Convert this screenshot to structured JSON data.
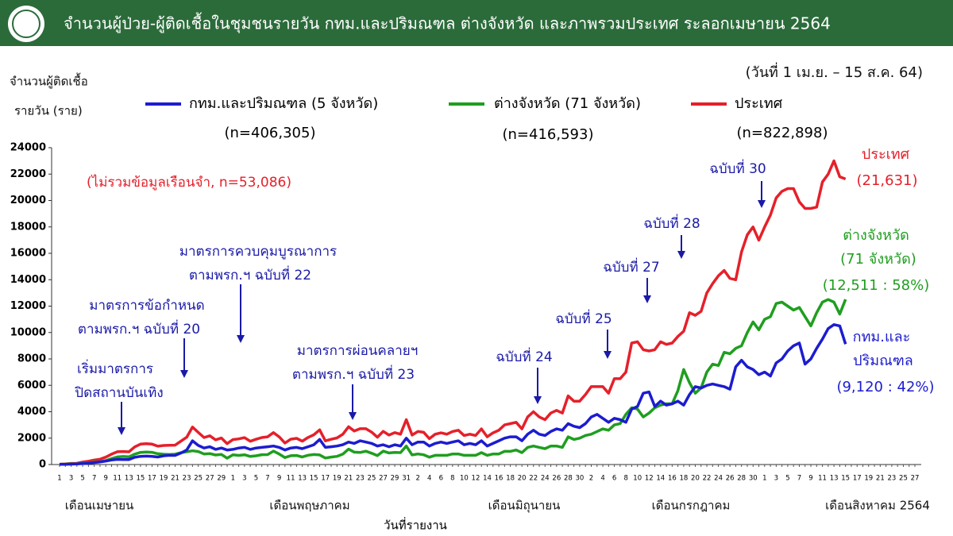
{
  "chart_data": {
    "type": "line",
    "title": "จำนวนผู้ป่วย-ผู้ติดเชื้อในชุมชนรายวัน กทม.และปริมณฑล ต่างจังหวัด และภาพรวมประเทศ ระลอกเมษายน 2564",
    "subtitle": "(วันที่ 1 เม.ย. – 15 ส.ค. 64)",
    "y_label": [
      "จำนวนผู้ติดเชื้อ",
      "รายวัน (ราย)"
    ],
    "x_label": "วันที่รายงาน",
    "months": [
      "เดือนเมษายน",
      "เดือนพฤษภาคม",
      "เดือนมิถุนายน",
      "เดือนกรกฎาคม",
      "เดือนสิงหาคม 2564"
    ],
    "note": "(ไม่รวมข้อมูลเรือนจำ, n=53,086)",
    "annotations": [
      [
        "เริ่มมาตรการ",
        "ปิดสถานบันเทิง"
      ],
      [
        "มาตรการข้อกำหนด",
        "ตามพรก.ฯ ฉบับที่ 20"
      ],
      [
        "มาตรการควบคุมบูรณาการ",
        "ตามพรก.ฯ ฉบับที่ 22"
      ],
      [
        "มาตรการผ่อนคลายฯ",
        "ตามพรก.ฯ ฉบับที่ 23"
      ],
      [
        "ฉบับที่ 24"
      ],
      [
        "ฉบับที่ 25"
      ],
      [
        "ฉบับที่ 27"
      ],
      [
        "ฉบับที่ 28"
      ],
      [
        "ฉบับที่ 30"
      ]
    ],
    "end_labels": [
      [
        "ประเทศ",
        "(21,631)"
      ],
      [
        "ต่างจังหวัด",
        "(71 จังหวัด)",
        "(12,511 : 58%)"
      ],
      [
        "กทม.และ",
        "ปริมณฑล",
        "(9,120 : 42%)"
      ]
    ],
    "ylim": [
      0,
      24000
    ],
    "yticks": [
      0,
      2000,
      4000,
      6000,
      8000,
      10000,
      12000,
      14000,
      16000,
      18000,
      20000,
      22000,
      24000
    ],
    "categories": [
      "1",
      null,
      "3",
      null,
      "5",
      null,
      "7",
      null,
      "9",
      null,
      "11",
      null,
      "13",
      null,
      "15",
      null,
      "17",
      null,
      "19",
      null,
      "21",
      null,
      "23",
      null,
      "25",
      null,
      "27",
      null,
      "29",
      null,
      "1",
      null,
      "3",
      null,
      "5",
      null,
      "7",
      null,
      "9",
      null,
      "11",
      null,
      "13",
      null,
      "15",
      null,
      "17",
      null,
      "19",
      null,
      "21",
      null,
      "23",
      null,
      "25",
      null,
      "27",
      null,
      "29",
      null,
      "31",
      null,
      "2",
      null,
      "4",
      null,
      "6",
      null,
      "8",
      null,
      "10",
      null,
      "12",
      null,
      "14",
      null,
      "16",
      null,
      "18",
      null,
      "20",
      null,
      "22",
      null,
      "24",
      null,
      "26",
      null,
      "28",
      null,
      "30",
      null,
      "2",
      null,
      "4",
      null,
      "6",
      null,
      "8",
      null,
      "10",
      null,
      "12",
      null,
      "14",
      null,
      "16",
      null,
      "18",
      null,
      "20",
      null,
      "22",
      null,
      "24",
      null,
      "26",
      null,
      "28",
      null,
      "30",
      null,
      "1",
      null,
      "3",
      null,
      "5",
      null,
      "7",
      null,
      "9",
      null,
      "11",
      null,
      "13",
      null,
      "15",
      null,
      "17",
      null,
      "19",
      null,
      "21",
      null,
      "23",
      null,
      "25",
      null,
      "27"
    ],
    "series": [
      {
        "name": "กทม.และปริมณฑล (5 จังหวัด)",
        "note": "(n=406,305)",
        "color": "#1c1cd0",
        "values": [
          10,
          20,
          30,
          40,
          80,
          110,
          150,
          200,
          260,
          340,
          390,
          380,
          380,
          550,
          620,
          640,
          620,
          570,
          660,
          700,
          690,
          870,
          1100,
          1800,
          1450,
          1250,
          1350,
          1150,
          1250,
          1100,
          1150,
          1250,
          1300,
          1150,
          1250,
          1300,
          1350,
          1400,
          1300,
          1100,
          1250,
          1300,
          1200,
          1350,
          1500,
          1900,
          1300,
          1350,
          1400,
          1500,
          1700,
          1600,
          1800,
          1700,
          1600,
          1400,
          1500,
          1350,
          1500,
          1400,
          2000,
          1500,
          1700,
          1700,
          1400,
          1600,
          1700,
          1600,
          1700,
          1800,
          1500,
          1600,
          1500,
          1800,
          1400,
          1600,
          1800,
          2000,
          2100,
          2100,
          1800,
          2300,
          2600,
          2300,
          2200,
          2500,
          2700,
          2600,
          3100,
          2900,
          2800,
          3100,
          3600,
          3800,
          3500,
          3200,
          3500,
          3400,
          3200,
          4200,
          4400,
          5400,
          5500,
          4400,
          4800,
          4500,
          4600,
          4800,
          4500,
          5300,
          5900,
          5800,
          6000,
          6100,
          6000,
          5900,
          5700,
          7400,
          7900,
          7400,
          7200,
          6800,
          7000,
          6700,
          7700,
          8000,
          8600,
          9000,
          9200,
          7600,
          8000,
          8800,
          9500,
          10300,
          10600,
          10500,
          9120,
          null,
          null,
          null,
          null,
          null,
          null,
          null,
          null,
          null,
          null,
          null,
          null
        ]
      },
      {
        "name": "ต่างจังหวัด (71 จังหวัด)",
        "note": "(n=416,593)",
        "color": "#1f9e1f",
        "values": [
          16,
          28,
          54,
          49,
          114,
          140,
          184,
          205,
          299,
          449,
          577,
          605,
          585,
          785,
          923,
          942,
          927,
          820,
          783,
          758,
          780,
          897,
          970,
          1039,
          988,
          798,
          829,
          721,
          762,
          483,
          741,
          690,
          741,
          613,
          661,
          744,
          751,
          1019,
          801,
          530,
          669,
          683,
          570,
          702,
          756,
          729,
          494,
          564,
          617,
          789,
          1166,
          936,
          915,
          1013,
          855,
          671,
          1017,
          880,
          919,
          900,
          1400,
          730,
          800,
          740,
          560,
          700,
          700,
          700,
          800,
          800,
          700,
          700,
          700,
          900,
          700,
          800,
          800,
          1000,
          1000,
          1100,
          900,
          1300,
          1400,
          1300,
          1200,
          1400,
          1400,
          1300,
          2100,
          1900,
          2000,
          2200,
          2300,
          2500,
          2700,
          2600,
          3000,
          3100,
          3800,
          4300,
          4200,
          3600,
          3900,
          4300,
          4500,
          4600,
          4600,
          5600,
          7200,
          6200,
          5400,
          5800,
          7000,
          7600,
          7500,
          8500,
          8400,
          8800,
          9000,
          10000,
          10800,
          10200,
          11000,
          11200,
          12200,
          12300,
          12000,
          11700,
          11900,
          11200,
          10500,
          11500,
          12300,
          12500,
          12300,
          11400,
          12511,
          null,
          null,
          null,
          null,
          null,
          null,
          null,
          null,
          null,
          null,
          null,
          null
        ]
      },
      {
        "name": "ประเทศ",
        "note": "(n=822,898)",
        "color": "#e5202a",
        "values": [
          26,
          48,
          84,
          89,
          194,
          250,
          334,
          405,
          559,
          789,
          967,
          985,
          965,
          1335,
          1543,
          1582,
          1547,
          1390,
          1443,
          1458,
          1470,
          1767,
          2070,
          2839,
          2438,
          2048,
          2179,
          1871,
          2012,
          1583,
          1891,
          1940,
          2041,
          1763,
          1911,
          2044,
          2101,
          2419,
          2101,
          1630,
          1919,
          1983,
          1770,
          2052,
          2256,
          2629,
          1794,
          1914,
          2017,
          2289,
          2866,
          2536,
          2715,
          2713,
          2455,
          2071,
          2517,
          2230,
          2419,
          2300,
          3400,
          2230,
          2500,
          2440,
          1960,
          2300,
          2400,
          2300,
          2500,
          2600,
          2200,
          2300,
          2200,
          2700,
          2100,
          2400,
          2600,
          3000,
          3100,
          3200,
          2700,
          3600,
          4000,
          3600,
          3400,
          3900,
          4100,
          3900,
          5200,
          4800,
          4800,
          5300,
          5900,
          5900,
          5900,
          5400,
          6500,
          6500,
          7000,
          9200,
          9300,
          8700,
          8600,
          8700,
          9300,
          9100,
          9200,
          9700,
          10100,
          11500,
          11300,
          11600,
          13000,
          13700,
          14300,
          14700,
          14100,
          14000,
          16100,
          17400,
          18000,
          17000,
          18000,
          18900,
          20200,
          20700,
          20900,
          20900,
          19900,
          19400,
          19400,
          19500,
          21400,
          22000,
          23000,
          21800,
          21631,
          null,
          null,
          null,
          null,
          null,
          null,
          null,
          null,
          null,
          null,
          null,
          null
        ]
      }
    ]
  }
}
